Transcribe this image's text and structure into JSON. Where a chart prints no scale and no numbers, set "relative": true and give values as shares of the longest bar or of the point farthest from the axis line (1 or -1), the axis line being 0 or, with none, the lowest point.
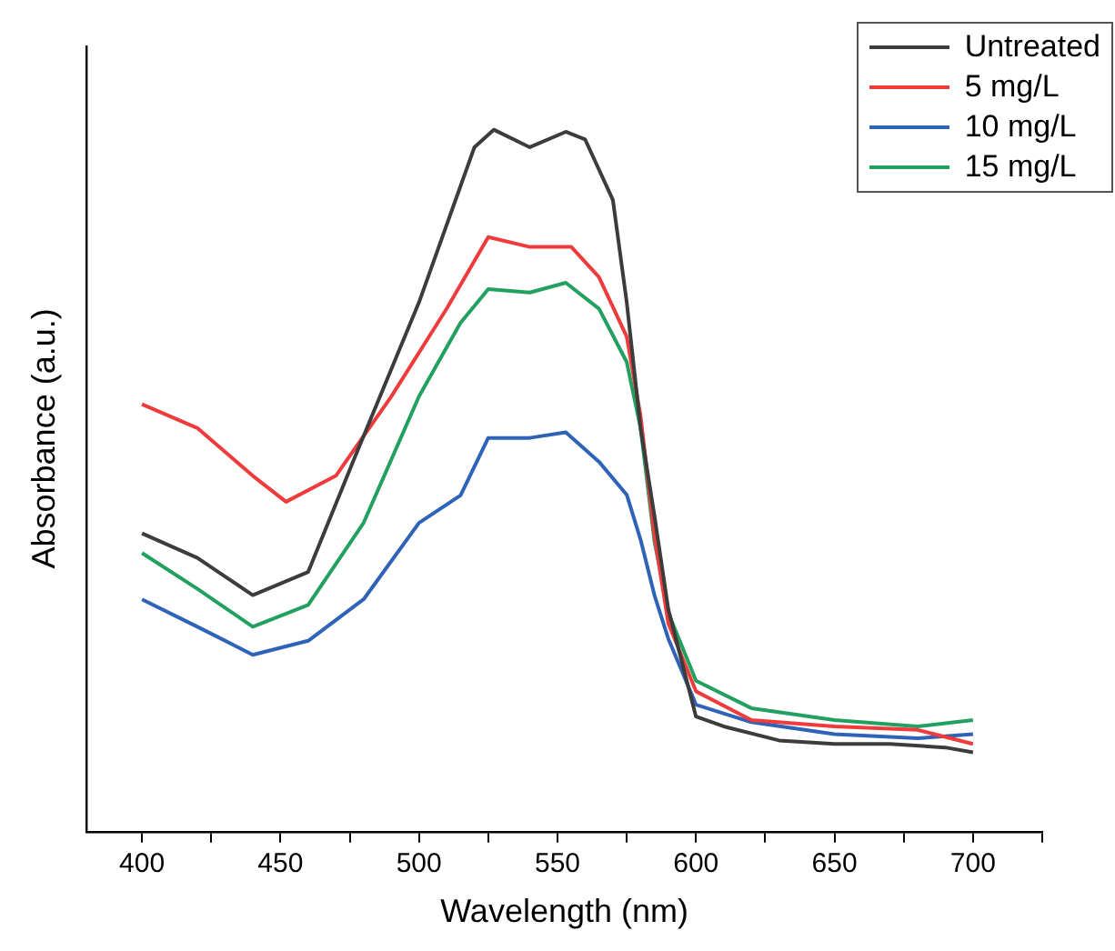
{
  "chart_data": {
    "type": "line",
    "xlabel": "Wavelength (nm)",
    "ylabel": "Absorbance (a.u.)",
    "relative": true,
    "legend": "top right",
    "grid": false,
    "xlim": [
      380,
      725
    ],
    "xticks": [
      400,
      {
        "value": 425,
        "label": null
      },
      450,
      {
        "value": 475,
        "label": null
      },
      500,
      {
        "value": 525,
        "label": null
      },
      550,
      {
        "value": 575,
        "label": null
      },
      600,
      {
        "value": 625,
        "label": null
      },
      650,
      {
        "value": 675,
        "label": null
      },
      700,
      {
        "value": 725,
        "label": null
      }
    ],
    "series": [
      {
        "name": "Untreated",
        "color": "#3c3c3c",
        "x": [
          400,
          420,
          440,
          460,
          477,
          500,
          520,
          527,
          540,
          553,
          560,
          570,
          575,
          580,
          585,
          590,
          600,
          610,
          630,
          650,
          670,
          690,
          700
        ],
        "values": [
          0.425,
          0.39,
          0.337,
          0.37,
          0.535,
          0.754,
          0.975,
          1,
          0.975,
          0.997,
          0.986,
          0.9,
          0.754,
          0.575,
          0.45,
          0.317,
          0.164,
          0.15,
          0.13,
          0.125,
          0.125,
          0.12,
          0.113
        ]
      },
      {
        "name": "5 mg/L",
        "color": "#ef3b3b",
        "x": [
          400,
          420,
          440,
          452,
          470,
          490,
          510,
          525,
          540,
          555,
          565,
          575,
          580,
          585,
          590,
          600,
          620,
          650,
          680,
          700
        ],
        "values": [
          0.609,
          0.575,
          0.507,
          0.47,
          0.507,
          0.62,
          0.745,
          0.847,
          0.833,
          0.833,
          0.79,
          0.705,
          0.592,
          0.422,
          0.297,
          0.2,
          0.159,
          0.15,
          0.145,
          0.125
        ]
      },
      {
        "name": "10 mg/L",
        "color": "#2e63b8",
        "x": [
          400,
          420,
          440,
          460,
          480,
          500,
          515,
          525,
          540,
          553,
          565,
          575,
          580,
          585,
          590,
          600,
          620,
          650,
          680,
          700
        ],
        "values": [
          0.331,
          0.292,
          0.252,
          0.272,
          0.331,
          0.44,
          0.479,
          0.561,
          0.561,
          0.569,
          0.527,
          0.48,
          0.416,
          0.337,
          0.275,
          0.181,
          0.156,
          0.139,
          0.133,
          0.139
        ]
      },
      {
        "name": "15 mg/L",
        "color": "#21a060",
        "x": [
          400,
          420,
          440,
          460,
          480,
          500,
          515,
          525,
          540,
          553,
          565,
          575,
          580,
          585,
          590,
          600,
          620,
          650,
          680,
          700
        ],
        "values": [
          0.397,
          0.346,
          0.292,
          0.323,
          0.44,
          0.62,
          0.725,
          0.773,
          0.768,
          0.782,
          0.745,
          0.669,
          0.575,
          0.414,
          0.312,
          0.215,
          0.176,
          0.159,
          0.15,
          0.159
        ]
      }
    ]
  }
}
